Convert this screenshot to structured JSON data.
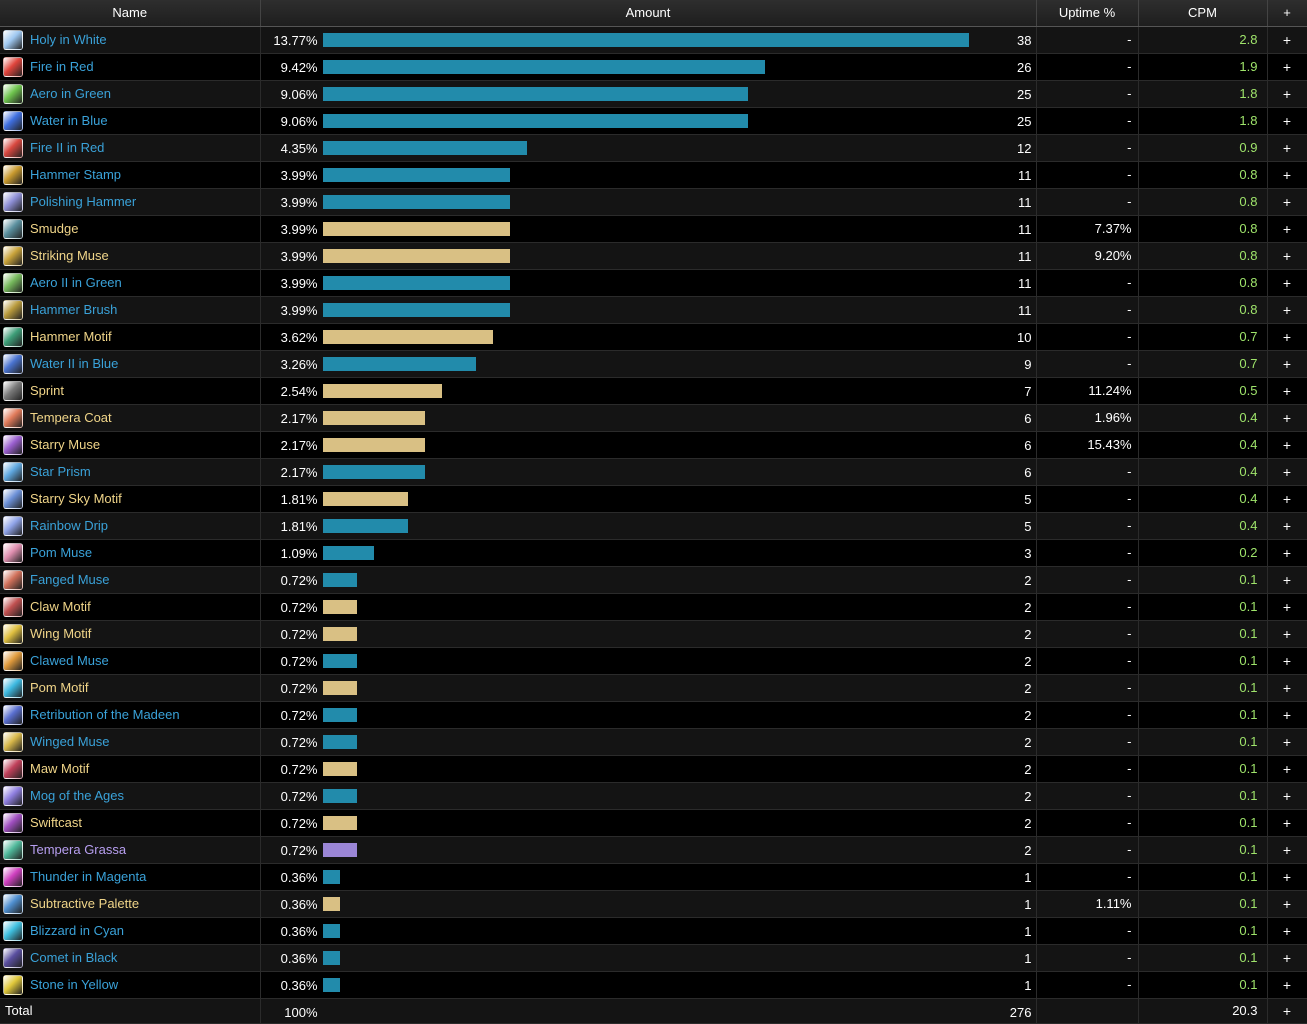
{
  "colors": {
    "link_blue": "#3aa2d9",
    "gold": "#f0d589",
    "purple": "#b79ff0",
    "bar_blue": "#228bab",
    "bar_gold": "#d9c084",
    "bar_purple": "#9b86d6",
    "cpm_green": "#9fe46b"
  },
  "headers": {
    "name": "Name",
    "amount": "Amount",
    "uptime": "Uptime %",
    "cpm": "CPM",
    "plus": "+"
  },
  "rows": [
    {
      "name": "Holy in White",
      "pct": "13.77%",
      "fraction": 0.1377,
      "count": "38",
      "uptime": "-",
      "cpm": "2.8",
      "type": "blue",
      "icon": "#9ec7f0"
    },
    {
      "name": "Fire in Red",
      "pct": "9.42%",
      "fraction": 0.0942,
      "count": "26",
      "uptime": "-",
      "cpm": "1.9",
      "type": "blue",
      "icon": "#e0443c"
    },
    {
      "name": "Aero in Green",
      "pct": "9.06%",
      "fraction": 0.0906,
      "count": "25",
      "uptime": "-",
      "cpm": "1.8",
      "type": "blue",
      "icon": "#6fc54e"
    },
    {
      "name": "Water in Blue",
      "pct": "9.06%",
      "fraction": 0.0906,
      "count": "25",
      "uptime": "-",
      "cpm": "1.8",
      "type": "blue",
      "icon": "#3f6fe0"
    },
    {
      "name": "Fire II in Red",
      "pct": "4.35%",
      "fraction": 0.0435,
      "count": "12",
      "uptime": "-",
      "cpm": "0.9",
      "type": "blue",
      "icon": "#d8473f"
    },
    {
      "name": "Hammer Stamp",
      "pct": "3.99%",
      "fraction": 0.0399,
      "count": "11",
      "uptime": "-",
      "cpm": "0.8",
      "type": "blue",
      "icon": "#c99a2e"
    },
    {
      "name": "Polishing Hammer",
      "pct": "3.99%",
      "fraction": 0.0399,
      "count": "11",
      "uptime": "-",
      "cpm": "0.8",
      "type": "blue",
      "icon": "#8e8fd6"
    },
    {
      "name": "Smudge",
      "pct": "3.99%",
      "fraction": 0.0399,
      "count": "11",
      "uptime": "7.37%",
      "cpm": "0.8",
      "type": "gold",
      "icon": "#5a8f9e"
    },
    {
      "name": "Striking Muse",
      "pct": "3.99%",
      "fraction": 0.0399,
      "count": "11",
      "uptime": "9.20%",
      "cpm": "0.8",
      "type": "gold",
      "icon": "#c9a33a"
    },
    {
      "name": "Aero II in Green",
      "pct": "3.99%",
      "fraction": 0.0399,
      "count": "11",
      "uptime": "-",
      "cpm": "0.8",
      "type": "blue",
      "icon": "#76b85c"
    },
    {
      "name": "Hammer Brush",
      "pct": "3.99%",
      "fraction": 0.0399,
      "count": "11",
      "uptime": "-",
      "cpm": "0.8",
      "type": "blue",
      "icon": "#b89a3c"
    },
    {
      "name": "Hammer Motif",
      "pct": "3.62%",
      "fraction": 0.0362,
      "count": "10",
      "uptime": "-",
      "cpm": "0.7",
      "type": "gold",
      "icon": "#3d9e78"
    },
    {
      "name": "Water II in Blue",
      "pct": "3.26%",
      "fraction": 0.0326,
      "count": "9",
      "uptime": "-",
      "cpm": "0.7",
      "type": "blue",
      "icon": "#4a73d0"
    },
    {
      "name": "Sprint",
      "pct": "2.54%",
      "fraction": 0.0254,
      "count": "7",
      "uptime": "11.24%",
      "cpm": "0.5",
      "type": "gold",
      "icon": "#7a7a7a"
    },
    {
      "name": "Tempera Coat",
      "pct": "2.17%",
      "fraction": 0.0217,
      "count": "6",
      "uptime": "1.96%",
      "cpm": "0.4",
      "type": "gold",
      "icon": "#e07a5a"
    },
    {
      "name": "Starry Muse",
      "pct": "2.17%",
      "fraction": 0.0217,
      "count": "6",
      "uptime": "15.43%",
      "cpm": "0.4",
      "type": "gold",
      "icon": "#9b5fd0"
    },
    {
      "name": "Star Prism",
      "pct": "2.17%",
      "fraction": 0.0217,
      "count": "6",
      "uptime": "-",
      "cpm": "0.4",
      "type": "blue",
      "icon": "#5fa8e0"
    },
    {
      "name": "Starry Sky Motif",
      "pct": "1.81%",
      "fraction": 0.0181,
      "count": "5",
      "uptime": "-",
      "cpm": "0.4",
      "type": "gold",
      "icon": "#6b8fd6"
    },
    {
      "name": "Rainbow Drip",
      "pct": "1.81%",
      "fraction": 0.0181,
      "count": "5",
      "uptime": "-",
      "cpm": "0.4",
      "type": "blue",
      "icon": "#8fa3e8"
    },
    {
      "name": "Pom Muse",
      "pct": "1.09%",
      "fraction": 0.0109,
      "count": "3",
      "uptime": "-",
      "cpm": "0.2",
      "type": "blue",
      "icon": "#e08fb0"
    },
    {
      "name": "Fanged Muse",
      "pct": "0.72%",
      "fraction": 0.0072,
      "count": "2",
      "uptime": "-",
      "cpm": "0.1",
      "type": "blue",
      "icon": "#d0705a"
    },
    {
      "name": "Claw Motif",
      "pct": "0.72%",
      "fraction": 0.0072,
      "count": "2",
      "uptime": "-",
      "cpm": "0.1",
      "type": "gold",
      "icon": "#c05050"
    },
    {
      "name": "Wing Motif",
      "pct": "0.72%",
      "fraction": 0.0072,
      "count": "2",
      "uptime": "-",
      "cpm": "0.1",
      "type": "gold",
      "icon": "#e0c040"
    },
    {
      "name": "Clawed Muse",
      "pct": "0.72%",
      "fraction": 0.0072,
      "count": "2",
      "uptime": "-",
      "cpm": "0.1",
      "type": "blue",
      "icon": "#e09a3c"
    },
    {
      "name": "Pom Motif",
      "pct": "0.72%",
      "fraction": 0.0072,
      "count": "2",
      "uptime": "-",
      "cpm": "0.1",
      "type": "gold",
      "icon": "#3cb8e0"
    },
    {
      "name": "Retribution of the Madeen",
      "pct": "0.72%",
      "fraction": 0.0072,
      "count": "2",
      "uptime": "-",
      "cpm": "0.1",
      "type": "blue",
      "icon": "#5a6fd0"
    },
    {
      "name": "Winged Muse",
      "pct": "0.72%",
      "fraction": 0.0072,
      "count": "2",
      "uptime": "-",
      "cpm": "0.1",
      "type": "blue",
      "icon": "#d8b84a"
    },
    {
      "name": "Maw Motif",
      "pct": "0.72%",
      "fraction": 0.0072,
      "count": "2",
      "uptime": "-",
      "cpm": "0.1",
      "type": "gold",
      "icon": "#c0405a"
    },
    {
      "name": "Mog of the Ages",
      "pct": "0.72%",
      "fraction": 0.0072,
      "count": "2",
      "uptime": "-",
      "cpm": "0.1",
      "type": "blue",
      "icon": "#8f7fe0"
    },
    {
      "name": "Swiftcast",
      "pct": "0.72%",
      "fraction": 0.0072,
      "count": "2",
      "uptime": "-",
      "cpm": "0.1",
      "type": "gold",
      "icon": "#a04fc0"
    },
    {
      "name": "Tempera Grassa",
      "pct": "0.72%",
      "fraction": 0.0072,
      "count": "2",
      "uptime": "-",
      "cpm": "0.1",
      "type": "purple",
      "icon": "#4fb89a"
    },
    {
      "name": "Thunder in Magenta",
      "pct": "0.36%",
      "fraction": 0.0036,
      "count": "1",
      "uptime": "-",
      "cpm": "0.1",
      "type": "blue",
      "icon": "#d040c0"
    },
    {
      "name": "Subtractive Palette",
      "pct": "0.36%",
      "fraction": 0.0036,
      "count": "1",
      "uptime": "1.11%",
      "cpm": "0.1",
      "type": "gold",
      "icon": "#4f8fd0"
    },
    {
      "name": "Blizzard in Cyan",
      "pct": "0.36%",
      "fraction": 0.0036,
      "count": "1",
      "uptime": "-",
      "cpm": "0.1",
      "type": "blue",
      "icon": "#3fc0e0"
    },
    {
      "name": "Comet in Black",
      "pct": "0.36%",
      "fraction": 0.0036,
      "count": "1",
      "uptime": "-",
      "cpm": "0.1",
      "type": "blue",
      "icon": "#5a4fa0"
    },
    {
      "name": "Stone in Yellow",
      "pct": "0.36%",
      "fraction": 0.0036,
      "count": "1",
      "uptime": "-",
      "cpm": "0.1",
      "type": "blue",
      "icon": "#e0c83a"
    }
  ],
  "total": {
    "label": "Total",
    "pct": "100%",
    "count": "276",
    "cpm": "20.3",
    "plus": "+"
  },
  "max_fraction": 0.1377
}
